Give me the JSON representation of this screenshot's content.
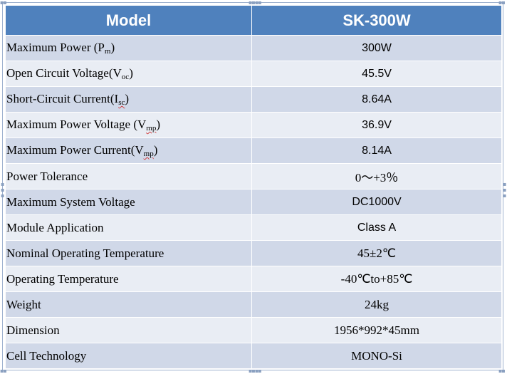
{
  "header": {
    "col1": "Model",
    "col2": "SK-300W"
  },
  "rows": [
    {
      "label": "Maximum Power (P",
      "sub": "m",
      "tail": ")",
      "value": "300W"
    },
    {
      "label": "Open Circuit Voltage(V",
      "sub": "oc",
      "tail": ")",
      "value": "45.5V"
    },
    {
      "label": "Short-Circuit Current(I",
      "sub": "sc",
      "tail": ")",
      "value": "8.64A"
    },
    {
      "label": "Maximum Power Voltage (V",
      "sub": "mp",
      "tail": ")",
      "value": "36.9V"
    },
    {
      "label": "Maximum Power Current(V",
      "sub": "mp",
      "tail": ")",
      "value": "8.14A"
    },
    {
      "label": "Power Tolerance",
      "value": "0～+3％"
    },
    {
      "label": "Maximum System Voltage",
      "value": "DC1000V"
    },
    {
      "label": "Module Application",
      "value": "Class A"
    },
    {
      "label": "Nominal Operating Temperature",
      "value": "45±2℃"
    },
    {
      "label": "Operating Temperature",
      "value": "-40℃to+85℃"
    },
    {
      "label": "Weight",
      "value": "24kg"
    },
    {
      "label": "Dimension",
      "value": "1956*992*45mm"
    },
    {
      "label": "Cell Technology",
      "value": "MONO-Si"
    }
  ],
  "colors": {
    "header": "#4f81bd",
    "row_dark": "#d0d8e8",
    "row_light": "#e9edf4"
  }
}
